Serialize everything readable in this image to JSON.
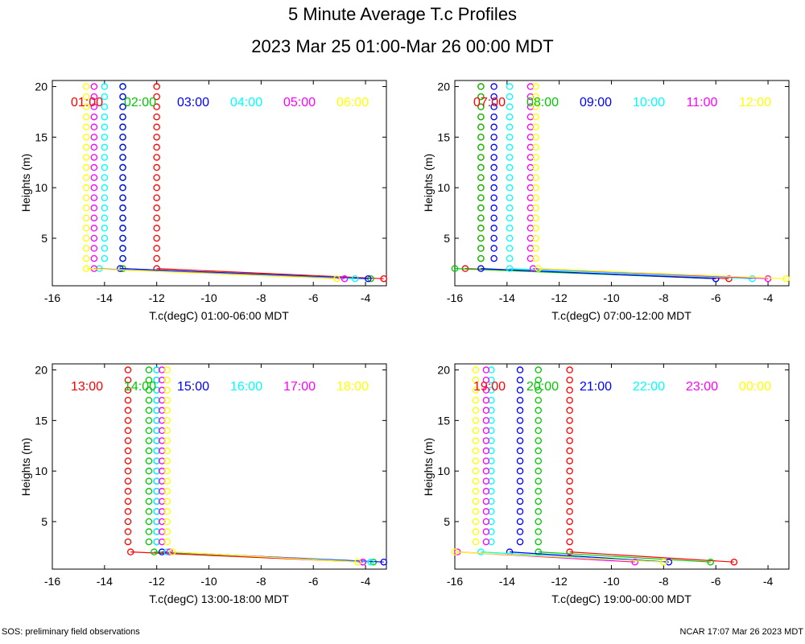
{
  "title": "5 Minute Average T.c Profiles",
  "subtitle": "2023 Mar 25 01:00-Mar 26 00:00 MDT",
  "footer_left": "SOS: preliminary field observations",
  "footer_right": "NCAR 17:07 Mar 26 2023 MDT",
  "colors": [
    "#ff0000",
    "#00c800",
    "#0000ff",
    "#00ffff",
    "#ff00ff",
    "#ffff00"
  ],
  "chart_data": [
    {
      "type": "scatter",
      "xlabel": "T.c(degC) 01:00-06:00 MDT",
      "ylabel": "Heights (m)",
      "xlim": [
        -16,
        -3.2
      ],
      "ylim": [
        0.3,
        20.6
      ],
      "xticks": [
        -16,
        -14,
        -12,
        -10,
        -8,
        -6,
        -4
      ],
      "yticks": [
        5,
        10,
        15,
        20
      ],
      "heights": [
        1,
        2,
        3,
        4,
        5,
        6,
        7,
        8,
        9,
        10,
        11,
        12,
        13,
        14,
        15,
        16,
        17,
        18,
        19,
        20
      ],
      "series": [
        {
          "name": "01:00",
          "t1": -3.3,
          "t2": -12.0,
          "upper": -12.0
        },
        {
          "name": "02:00",
          "t1": -3.8,
          "t2": -13.3,
          "upper": -13.3
        },
        {
          "name": "03:00",
          "t1": -3.9,
          "t2": -13.4,
          "upper": -13.3
        },
        {
          "name": "04:00",
          "t1": -4.4,
          "t2": -14.2,
          "upper": -14.0
        },
        {
          "name": "05:00",
          "t1": -4.8,
          "t2": -14.4,
          "upper": -14.4
        },
        {
          "name": "06:00",
          "t1": -5.1,
          "t2": -14.7,
          "upper": -14.7
        }
      ]
    },
    {
      "type": "scatter",
      "xlabel": "T.c(degC) 07:00-12:00 MDT",
      "ylabel": "Heights (m)",
      "xlim": [
        -16,
        -3.2
      ],
      "ylim": [
        0.3,
        20.6
      ],
      "xticks": [
        -16,
        -14,
        -12,
        -10,
        -8,
        -6,
        -4
      ],
      "yticks": [
        5,
        10,
        15,
        20
      ],
      "heights": [
        1,
        2,
        3,
        4,
        5,
        6,
        7,
        8,
        9,
        10,
        11,
        12,
        13,
        14,
        15,
        16,
        17,
        18,
        19,
        20
      ],
      "series": [
        {
          "name": "07:00",
          "t1": -5.5,
          "t2": -15.6,
          "upper": -15.0
        },
        {
          "name": "08:00",
          "t1": -6.0,
          "t2": -16.0,
          "upper": -15.0
        },
        {
          "name": "09:00",
          "t1": -6.0,
          "t2": -15.0,
          "upper": -14.5
        },
        {
          "name": "10:00",
          "t1": -4.6,
          "t2": -13.9,
          "upper": -13.9
        },
        {
          "name": "11:00",
          "t1": -4.0,
          "t2": -13.0,
          "upper": -13.1
        },
        {
          "name": "12:00",
          "t1": -3.3,
          "t2": -12.8,
          "upper": -12.9
        }
      ]
    },
    {
      "type": "scatter",
      "xlabel": "T.c(degC) 13:00-18:00 MDT",
      "ylabel": "Heights (m)",
      "xlim": [
        -16,
        -3.2
      ],
      "ylim": [
        0.3,
        20.6
      ],
      "xticks": [
        -16,
        -14,
        -12,
        -10,
        -8,
        -6,
        -4
      ],
      "yticks": [
        5,
        10,
        15,
        20
      ],
      "heights": [
        1,
        2,
        3,
        4,
        5,
        6,
        7,
        8,
        9,
        10,
        11,
        12,
        13,
        14,
        15,
        16,
        17,
        18,
        19,
        20
      ],
      "series": [
        {
          "name": "13:00",
          "t1": -4.1,
          "t2": -13.0,
          "upper": -13.1
        },
        {
          "name": "14:00",
          "t1": -3.7,
          "t2": -12.1,
          "upper": -12.3
        },
        {
          "name": "15:00",
          "t1": -3.3,
          "t2": -11.8,
          "upper": -12.0
        },
        {
          "name": "16:00",
          "t1": -3.8,
          "t2": -11.6,
          "upper": -12.0
        },
        {
          "name": "17:00",
          "t1": -4.1,
          "t2": -11.5,
          "upper": -11.8
        },
        {
          "name": "18:00",
          "t1": -4.3,
          "t2": -11.4,
          "upper": -11.6
        }
      ]
    },
    {
      "type": "scatter",
      "xlabel": "T.c(degC) 19:00-00:00 MDT",
      "ylabel": "Heights (m)",
      "xlim": [
        -16,
        -3.2
      ],
      "ylim": [
        0.3,
        20.6
      ],
      "xticks": [
        -16,
        -14,
        -12,
        -10,
        -8,
        -6,
        -4
      ],
      "yticks": [
        5,
        10,
        15,
        20
      ],
      "heights": [
        1,
        2,
        3,
        4,
        5,
        6,
        7,
        8,
        9,
        10,
        11,
        12,
        13,
        14,
        15,
        16,
        17,
        18,
        19,
        20
      ],
      "series": [
        {
          "name": "19:00",
          "t1": -5.3,
          "t2": -11.6,
          "upper": -11.6
        },
        {
          "name": "20:00",
          "t1": -6.2,
          "t2": -12.8,
          "upper": -12.8
        },
        {
          "name": "21:00",
          "t1": -7.8,
          "t2": -13.9,
          "upper": -13.5
        },
        {
          "name": "22:00",
          "t1": -8.0,
          "t2": -15.0,
          "upper": -14.6
        },
        {
          "name": "23:00",
          "t1": -9.1,
          "t2": -15.9,
          "upper": -14.8
        },
        {
          "name": "00:00",
          "t1": -8.0,
          "t2": -16.0,
          "upper": -15.2
        }
      ]
    }
  ]
}
